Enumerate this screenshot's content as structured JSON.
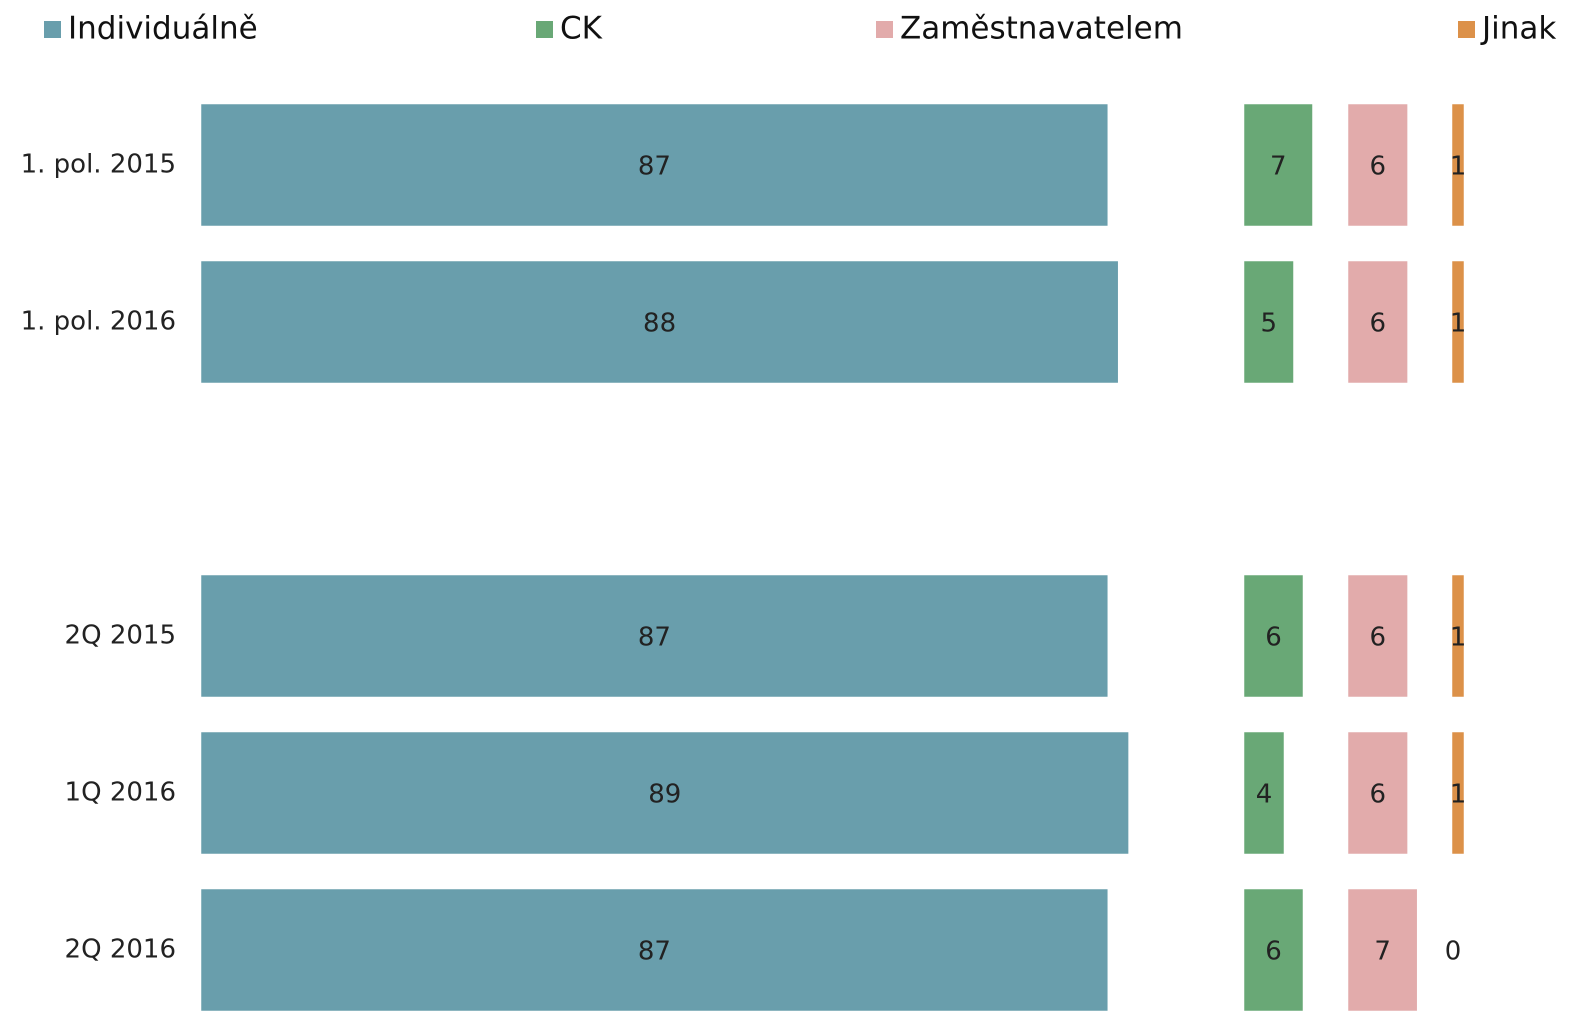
{
  "chart_data": {
    "type": "bar",
    "categories": [
      "1. pol. 2015",
      "1. pol. 2016",
      null,
      "2Q 2015",
      "1Q 2016",
      "2Q 2016"
    ],
    "series": [
      {
        "name": "Individuálně",
        "color": "#699eac",
        "values": [
          87,
          88,
          null,
          87,
          89,
          87
        ],
        "xlim": [
          0,
          100
        ]
      },
      {
        "name": "CK",
        "color": "#69a876",
        "values": [
          7,
          5,
          null,
          6,
          4,
          6
        ],
        "xlim": [
          0,
          10
        ]
      },
      {
        "name": "Zaměstnavatelem",
        "color": "#e2abab",
        "values": [
          6,
          6,
          null,
          6,
          6,
          7
        ],
        "xlim": [
          0,
          10
        ]
      },
      {
        "name": "Jinak",
        "color": "#dc9149",
        "values": [
          1,
          1,
          null,
          1,
          1,
          0
        ],
        "xlim": [
          0,
          10
        ]
      }
    ]
  }
}
